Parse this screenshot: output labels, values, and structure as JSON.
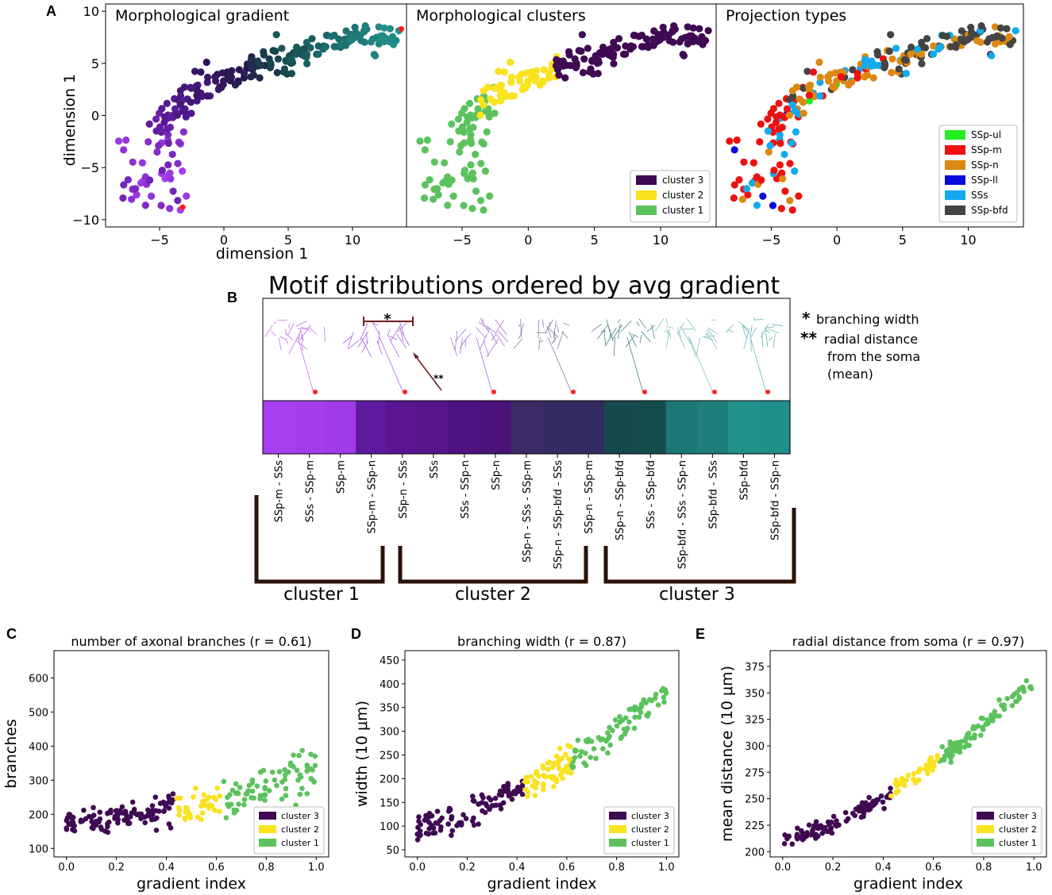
{
  "panel_letters": {
    "a": "A",
    "b": "B",
    "c": "C",
    "d": "D",
    "e": "E"
  },
  "colors": {
    "cluster3": "#3f0a52",
    "cluster2": "#f9e21e",
    "cluster1": "#5cc25e",
    "SSp_ul": "#22ee22",
    "SSp_m": "#ee1111",
    "SSp_n": "#dd8811",
    "SSp_ll": "#0a0add",
    "SSs": "#11aaee",
    "SSp_bfd": "#444444",
    "star": "#4a0b0b",
    "bracket": "#2a1208"
  },
  "legend_clusters": [
    "cluster 3",
    "cluster 2",
    "cluster 1"
  ],
  "legend_projection": [
    "SSp-ul",
    "SSp-m",
    "SSp-n",
    "SSp-ll",
    "SSs",
    "SSp-bfd"
  ],
  "panel_b": {
    "title": "Motif distributions ordered by avg gradient",
    "annotation_star": "*",
    "annotation_double_star": "**",
    "note_star": "branching width",
    "note_double_star_lines": [
      "radial distance",
      "from the soma",
      "(mean)"
    ],
    "cluster_labels": [
      "cluster 1",
      "cluster 2",
      "cluster 3"
    ],
    "motifs": [
      "SSp-m - SSs",
      "SSs - SSp-m",
      "SSp-m",
      "SSp-m - SSp-n",
      "SSp-n - SSs",
      "SSs",
      "SSs - SSp-n",
      "SSp-n",
      "SSp-n - SSs - SSp-m",
      "SSp-n - SSp-bfd - SSs",
      "SSp-n - SSp-m",
      "SSp-n - SSp-bfd",
      "SSs - SSp-bfd",
      "SSp-bfd - SSs - SSp-n",
      "SSp-bfd - SSs",
      "SSp-bfd",
      "SSp-bfd - SSp-n"
    ],
    "bar_colors": [
      "#a73ff0",
      "#a53ded",
      "#a03be8",
      "#5e1a9e",
      "#5a1690",
      "#56158a",
      "#4e1380",
      "#4b137a",
      "#3a2a66",
      "#362a62",
      "#332a60",
      "#16494d",
      "#154d4d",
      "#1c7877",
      "#1e7e7c",
      "#22918c",
      "#218e89"
    ]
  },
  "chart_data": [
    {
      "type": "scatter",
      "id": "a1",
      "title": "Morphological gradient",
      "xlabel": "dimension 1",
      "ylabel": "dimension 1",
      "xlim": [
        -9.2,
        14.2
      ],
      "ylim": [
        -10.7,
        10.7
      ],
      "xticks": [
        -5,
        0,
        5,
        10
      ],
      "yticks": [
        -10,
        -5,
        0,
        5,
        10
      ],
      "xticklabels": [
        "−5",
        "0",
        "5",
        "10"
      ],
      "yticklabels": [
        "−10",
        "−5",
        "0",
        "5",
        "10"
      ],
      "color_by": "gradient",
      "endpoints": [
        [
          -3.2,
          -8.8
        ],
        [
          13.8,
          8.3
        ]
      ]
    },
    {
      "type": "scatter",
      "id": "a2",
      "title": "Morphological clusters",
      "xlim": [
        -9.2,
        14.2
      ],
      "ylim": [
        -10.7,
        10.7
      ],
      "xticks": [
        -5,
        0,
        5,
        10
      ],
      "xticklabels": [
        "−5",
        "0",
        "5",
        "10"
      ],
      "color_by": "cluster",
      "legend": [
        "cluster 3",
        "cluster 2",
        "cluster 1"
      ],
      "legend_position": "lower-right"
    },
    {
      "type": "scatter",
      "id": "a3",
      "title": "Projection types",
      "xlim": [
        -9.2,
        14.2
      ],
      "ylim": [
        -10.7,
        10.7
      ],
      "xticks": [
        -5,
        0,
        5,
        10
      ],
      "xticklabels": [
        "−5",
        "0",
        "5",
        "10"
      ],
      "color_by": "projection",
      "legend": [
        "SSp-ul",
        "SSp-m",
        "SSp-n",
        "SSp-ll",
        "SSs",
        "SSp-bfd"
      ],
      "legend_position": "lower-right"
    },
    {
      "type": "scatter",
      "id": "c",
      "title": "number of axonal branches (r = 0.61)",
      "xlabel": "gradient index",
      "ylabel": "branches",
      "xlim": [
        -0.05,
        1.05
      ],
      "ylim": [
        75,
        680
      ],
      "xticks": [
        0,
        0.2,
        0.4,
        0.6,
        0.8,
        1.0
      ],
      "xticklabels": [
        "0.0",
        "0.2",
        "0.4",
        "0.6",
        "0.8",
        "1.0"
      ],
      "yticks": [
        100,
        200,
        300,
        400,
        500,
        600
      ],
      "yticklabels": [
        "100",
        "200",
        "300",
        "400",
        "500",
        "600"
      ],
      "trend": {
        "x0": 0,
        "y0": 180,
        "x1": 1,
        "y1": 330,
        "noise": 45
      },
      "legend": [
        "cluster 3",
        "cluster 2",
        "cluster 1"
      ],
      "legend_position": "lower-right"
    },
    {
      "type": "scatter",
      "id": "d",
      "title": "branching width (r = 0.87)",
      "xlabel": "gradient index",
      "ylabel": "width (10 μm)",
      "xlim": [
        -0.05,
        1.05
      ],
      "ylim": [
        35,
        470
      ],
      "xticks": [
        0,
        0.2,
        0.4,
        0.6,
        0.8,
        1.0
      ],
      "xticklabels": [
        "0.0",
        "0.2",
        "0.4",
        "0.6",
        "0.8",
        "1.0"
      ],
      "yticks": [
        50,
        100,
        150,
        200,
        250,
        300,
        350,
        400,
        450
      ],
      "yticklabels": [
        "50",
        "100",
        "150",
        "200",
        "250",
        "300",
        "350",
        "400",
        "450"
      ],
      "trend": {
        "x0": 0,
        "y0": 95,
        "x1": 1,
        "y1": 380,
        "noise": 32
      },
      "legend": [
        "cluster 3",
        "cluster 2",
        "cluster 1"
      ],
      "legend_position": "lower-right"
    },
    {
      "type": "scatter",
      "id": "e",
      "title": "radial distance from soma (r = 0.97)",
      "xlabel": "gradient index",
      "ylabel": "mean distance (10 μm)",
      "xlim": [
        -0.05,
        1.05
      ],
      "ylim": [
        195,
        390
      ],
      "xticks": [
        0,
        0.2,
        0.4,
        0.6,
        0.8,
        1.0
      ],
      "xticklabels": [
        "0.0",
        "0.2",
        "0.4",
        "0.6",
        "0.8",
        "1.0"
      ],
      "yticks": [
        200,
        225,
        250,
        275,
        300,
        325,
        350,
        375
      ],
      "yticklabels": [
        "200",
        "225",
        "250",
        "275",
        "300",
        "325",
        "350",
        "375"
      ],
      "trend": {
        "x0": 0,
        "y0": 210,
        "x1": 1,
        "y1": 360,
        "noise": 9
      },
      "legend": [
        "cluster 3",
        "cluster 2",
        "cluster 1"
      ],
      "legend_position": "lower-right"
    }
  ]
}
